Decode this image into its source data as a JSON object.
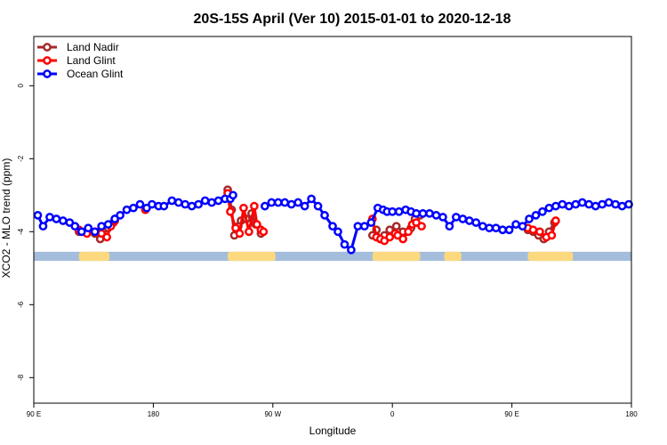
{
  "chart_data": {
    "type": "line",
    "title": "20S-15S April (Ver 10)   2015-01-01 to 2020-12-18",
    "xlabel": "Longitude",
    "ylabel": "XCO2 - MLO trend (ppm)",
    "x_tick_positions": [
      90,
      180,
      270,
      360,
      450,
      540
    ],
    "x_tick_labels": [
      "90 E",
      "180",
      "90 W",
      "0",
      "90 E",
      "180"
    ],
    "xlim": [
      90,
      540
    ],
    "y_ticks": [
      0,
      -2,
      -4,
      -6,
      -8
    ],
    "ylim": [
      -8.7,
      1.35
    ],
    "legend": {
      "position": "top-left",
      "entries": [
        "Land Nadir",
        "Land Glint",
        "Ocean Glint"
      ]
    },
    "colors": {
      "land_nadir": "#a52a2a",
      "land_glint": "#ff0000",
      "ocean_glint": "#0000ff",
      "ocean_band": "#a5bddc",
      "land_band": "#fcd97e"
    },
    "surface_band": {
      "y_range": [
        -4.55,
        -4.8
      ],
      "land_segments": [
        [
          124,
          147
        ],
        [
          236,
          272
        ],
        [
          345,
          381
        ],
        [
          399,
          412
        ],
        [
          462,
          496
        ]
      ]
    },
    "series": [
      {
        "name": "Land Nadir",
        "x": [
          124,
          130,
          136,
          140,
          146,
          150,
          236,
          239,
          241,
          244,
          246,
          250,
          254,
          257,
          261,
          345,
          348,
          351,
          354,
          358,
          363,
          368,
          374,
          377,
          381,
          462,
          466,
          470,
          474,
          478,
          482
        ],
        "y": [
          -4.0,
          -4.0,
          -4.05,
          -4.2,
          -3.9,
          -3.75,
          -2.85,
          -3.4,
          -4.1,
          -3.85,
          -3.7,
          -3.65,
          -3.5,
          -3.8,
          -4.05,
          -4.1,
          -3.95,
          -4.2,
          -4.1,
          -3.95,
          -3.85,
          -4.0,
          -3.9,
          -3.65,
          -3.55,
          -3.95,
          -4.0,
          -4.1,
          -4.2,
          -4.0,
          -3.75
        ]
      },
      {
        "name": "Land Glint",
        "x": [
          124,
          126,
          130,
          136,
          141,
          145,
          148,
          151,
          174,
          236,
          238,
          242,
          245,
          248,
          252,
          256,
          258,
          261,
          263,
          345,
          348,
          351,
          354,
          358,
          362,
          364,
          368,
          372,
          375,
          378,
          382,
          462,
          466,
          471,
          476,
          480,
          483
        ],
        "y": [
          -3.95,
          -4.0,
          -4.05,
          -4.0,
          -4.05,
          -4.15,
          -3.85,
          -3.7,
          -3.4,
          -2.95,
          -3.45,
          -3.9,
          -4.05,
          -3.35,
          -4.0,
          -3.3,
          -3.8,
          -3.95,
          -4.0,
          -3.65,
          -4.15,
          -4.2,
          -4.25,
          -4.15,
          -4.05,
          -4.1,
          -4.2,
          -4.0,
          -3.8,
          -3.75,
          -3.85,
          -3.9,
          -3.95,
          -4.0,
          -4.15,
          -4.1,
          -3.7
        ]
      },
      {
        "name": "Ocean Glint",
        "x": [
          93,
          97,
          102,
          107,
          112,
          117,
          121,
          126,
          131,
          136,
          141,
          146,
          151,
          155,
          160,
          165,
          170,
          175,
          179,
          184,
          188,
          194,
          199,
          204,
          209,
          214,
          219,
          224,
          229,
          234,
          238,
          240,
          264,
          269,
          274,
          279,
          284,
          289,
          294,
          299,
          304,
          309,
          315,
          319,
          324,
          329,
          334,
          339,
          344,
          349,
          353,
          356,
          360,
          365,
          370,
          374,
          378,
          383,
          388,
          393,
          398,
          403,
          408,
          413,
          418,
          423,
          428,
          433,
          438,
          443,
          448,
          453,
          458,
          463,
          468,
          473,
          478,
          483,
          488,
          493,
          498,
          503,
          508,
          513,
          518,
          523,
          528,
          533,
          538
        ],
        "y": [
          -3.55,
          -3.85,
          -3.6,
          -3.65,
          -3.7,
          -3.75,
          -3.85,
          -4.0,
          -3.9,
          -4.0,
          -3.85,
          -3.8,
          -3.65,
          -3.55,
          -3.4,
          -3.35,
          -3.25,
          -3.35,
          -3.25,
          -3.3,
          -3.3,
          -3.15,
          -3.2,
          -3.25,
          -3.3,
          -3.25,
          -3.15,
          -3.2,
          -3.15,
          -3.1,
          -3.1,
          -3.0,
          -3.3,
          -3.2,
          -3.2,
          -3.2,
          -3.25,
          -3.2,
          -3.3,
          -3.1,
          -3.3,
          -3.55,
          -3.85,
          -4.0,
          -4.35,
          -4.5,
          -3.85,
          -3.85,
          -3.75,
          -3.35,
          -3.4,
          -3.45,
          -3.45,
          -3.45,
          -3.4,
          -3.45,
          -3.5,
          -3.5,
          -3.5,
          -3.55,
          -3.6,
          -3.85,
          -3.6,
          -3.65,
          -3.7,
          -3.75,
          -3.85,
          -3.9,
          -3.9,
          -3.95,
          -3.95,
          -3.8,
          -3.85,
          -3.65,
          -3.55,
          -3.45,
          -3.35,
          -3.3,
          -3.25,
          -3.3,
          -3.25,
          -3.2,
          -3.25,
          -3.3,
          -3.25,
          -3.2,
          -3.25,
          -3.3,
          -3.25
        ]
      }
    ]
  }
}
